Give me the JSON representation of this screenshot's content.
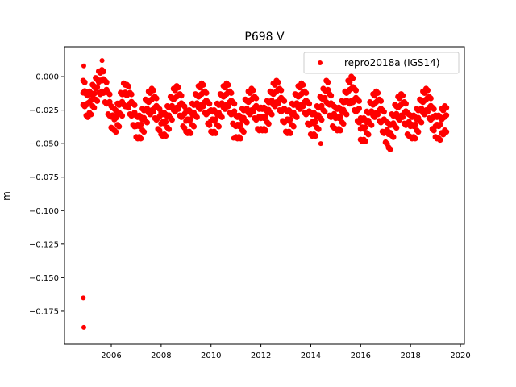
{
  "chart_data": {
    "type": "scatter",
    "title": "P698 V",
    "xlabel": "",
    "ylabel": "m",
    "xlim": [
      2004.125,
      2020.16
    ],
    "ylim": [
      -0.1997,
      0.0223
    ],
    "grid": false,
    "legend_placement": "top-right",
    "xticks": [
      2006,
      2008,
      2010,
      2012,
      2014,
      2016,
      2018,
      2020
    ],
    "xtick_labels": [
      "2006",
      "2008",
      "2010",
      "2012",
      "2014",
      "2016",
      "2018",
      "2020"
    ],
    "yticks": [
      0,
      -0.025,
      -0.05,
      -0.075,
      -0.1,
      -0.125,
      -0.15,
      -0.175
    ],
    "ytick_labels": [
      "0.000",
      "−0.025",
      "−0.050",
      "−0.075",
      "−0.100",
      "−0.125",
      "−0.150",
      "−0.175"
    ],
    "series": [
      {
        "name": "repro2018a (IGS14)",
        "color": "#ff0000",
        "marker": "circle",
        "points": [
          [
            2004.9,
            0.008
          ],
          [
            2004.88,
            -0.165
          ],
          [
            2004.9,
            -0.187
          ],
          [
            2005.63,
            0.012
          ],
          [
            2014.4,
            -0.05
          ],
          [
            2010.9,
            -0.046
          ]
        ],
        "points_by_date": [
          [
            2004.875,
            -0.003,
            -0.012,
            -0.021
          ],
          [
            2005.0,
            -0.013,
            -0.021,
            -0.029
          ],
          [
            2005.125,
            -0.011,
            -0.019,
            -0.027
          ],
          [
            2005.25,
            -0.006,
            -0.014,
            -0.022
          ],
          [
            2005.375,
            -0.001,
            -0.009,
            -0.017
          ],
          [
            2005.5,
            0.004,
            -0.004,
            -0.012
          ],
          [
            2005.625,
            0.005,
            -0.003,
            -0.011
          ],
          [
            2005.75,
            -0.003,
            -0.011,
            -0.019
          ],
          [
            2005.875,
            -0.012,
            -0.02,
            -0.028
          ],
          [
            2006.0,
            -0.022,
            -0.03,
            -0.038
          ],
          [
            2006.125,
            -0.024,
            -0.032,
            -0.04
          ],
          [
            2006.25,
            -0.02,
            -0.028,
            -0.036
          ],
          [
            2006.375,
            -0.012,
            -0.02,
            -0.028
          ],
          [
            2006.5,
            -0.005,
            -0.013,
            -0.021
          ],
          [
            2006.625,
            -0.006,
            -0.014,
            -0.022
          ],
          [
            2006.75,
            -0.012,
            -0.02,
            -0.028
          ],
          [
            2006.875,
            -0.02,
            -0.028,
            -0.036
          ],
          [
            2007.0,
            -0.029,
            -0.037,
            -0.045
          ],
          [
            2007.125,
            -0.029,
            -0.037,
            -0.045
          ],
          [
            2007.25,
            -0.024,
            -0.032,
            -0.04
          ],
          [
            2007.375,
            -0.017,
            -0.025,
            -0.033
          ],
          [
            2007.5,
            -0.011,
            -0.019,
            -0.027
          ],
          [
            2007.625,
            -0.009,
            -0.017,
            -0.025
          ],
          [
            2007.75,
            -0.015,
            -0.023,
            -0.031
          ],
          [
            2007.875,
            -0.023,
            -0.031,
            -0.039
          ],
          [
            2008.0,
            -0.027,
            -0.035,
            -0.043
          ],
          [
            2008.125,
            -0.027,
            -0.035,
            -0.043
          ],
          [
            2008.25,
            -0.022,
            -0.03,
            -0.038
          ],
          [
            2008.375,
            -0.015,
            -0.023,
            -0.031
          ],
          [
            2008.5,
            -0.009,
            -0.017,
            -0.025
          ],
          [
            2008.625,
            -0.007,
            -0.015,
            -0.023
          ],
          [
            2008.75,
            -0.013,
            -0.021,
            -0.029
          ],
          [
            2008.875,
            -0.021,
            -0.029,
            -0.037
          ],
          [
            2009.0,
            -0.025,
            -0.033,
            -0.041
          ],
          [
            2009.125,
            -0.025,
            -0.033,
            -0.041
          ],
          [
            2009.25,
            -0.02,
            -0.028,
            -0.036
          ],
          [
            2009.375,
            -0.013,
            -0.021,
            -0.029
          ],
          [
            2009.5,
            -0.007,
            -0.015,
            -0.023
          ],
          [
            2009.625,
            -0.005,
            -0.013,
            -0.021
          ],
          [
            2009.75,
            -0.011,
            -0.019,
            -0.027
          ],
          [
            2009.875,
            -0.019,
            -0.027,
            -0.035
          ],
          [
            2010.0,
            -0.025,
            -0.033,
            -0.041
          ],
          [
            2010.125,
            -0.025,
            -0.033,
            -0.041
          ],
          [
            2010.25,
            -0.02,
            -0.028,
            -0.036
          ],
          [
            2010.375,
            -0.013,
            -0.021,
            -0.029
          ],
          [
            2010.5,
            -0.007,
            -0.015,
            -0.023
          ],
          [
            2010.625,
            -0.005,
            -0.013,
            -0.021
          ],
          [
            2010.75,
            -0.011,
            -0.019,
            -0.027
          ],
          [
            2010.875,
            -0.019,
            -0.027,
            -0.035
          ],
          [
            2011.0,
            -0.029,
            -0.037,
            -0.045
          ],
          [
            2011.125,
            -0.029,
            -0.037,
            -0.045
          ],
          [
            2011.25,
            -0.024,
            -0.032,
            -0.04
          ],
          [
            2011.375,
            -0.017,
            -0.025,
            -0.033
          ],
          [
            2011.5,
            -0.011,
            -0.019,
            -0.027
          ],
          [
            2011.625,
            -0.009,
            -0.017,
            -0.025
          ],
          [
            2011.75,
            -0.015,
            -0.023,
            -0.031
          ],
          [
            2011.875,
            -0.023,
            -0.031,
            -0.039
          ],
          [
            2012.0,
            -0.023,
            -0.031,
            -0.039
          ],
          [
            2012.125,
            -0.023,
            -0.031,
            -0.039
          ],
          [
            2012.25,
            -0.018,
            -0.026,
            -0.034
          ],
          [
            2012.375,
            -0.011,
            -0.019,
            -0.027
          ],
          [
            2012.5,
            -0.005,
            -0.013,
            -0.021
          ],
          [
            2012.625,
            -0.003,
            -0.011,
            -0.019
          ],
          [
            2012.75,
            -0.009,
            -0.017,
            -0.025
          ],
          [
            2012.875,
            -0.017,
            -0.025,
            -0.033
          ],
          [
            2013.0,
            -0.025,
            -0.033,
            -0.041
          ],
          [
            2013.125,
            -0.025,
            -0.033,
            -0.041
          ],
          [
            2013.25,
            -0.02,
            -0.028,
            -0.036
          ],
          [
            2013.375,
            -0.013,
            -0.021,
            -0.029
          ],
          [
            2013.5,
            -0.007,
            -0.015,
            -0.023
          ],
          [
            2013.625,
            -0.005,
            -0.013,
            -0.021
          ],
          [
            2013.75,
            -0.011,
            -0.019,
            -0.027
          ],
          [
            2013.875,
            -0.019,
            -0.027,
            -0.035
          ],
          [
            2014.0,
            -0.027,
            -0.035,
            -0.043
          ],
          [
            2014.125,
            -0.027,
            -0.035,
            -0.043
          ],
          [
            2014.25,
            -0.022,
            -0.03,
            -0.038
          ],
          [
            2014.375,
            -0.015,
            -0.023,
            -0.031
          ],
          [
            2014.5,
            -0.009,
            -0.017,
            -0.025
          ],
          [
            2014.625,
            -0.003,
            -0.011,
            -0.019
          ],
          [
            2014.75,
            -0.013,
            -0.021,
            -0.029
          ],
          [
            2014.875,
            -0.021,
            -0.029,
            -0.037
          ],
          [
            2015.0,
            -0.023,
            -0.031,
            -0.039
          ],
          [
            2015.125,
            -0.023,
            -0.031,
            -0.039
          ],
          [
            2015.25,
            -0.018,
            -0.026,
            -0.034
          ],
          [
            2015.375,
            -0.011,
            -0.019,
            -0.027
          ],
          [
            2015.5,
            -0.003,
            -0.011,
            -0.019
          ],
          [
            2015.625,
            0.0,
            -0.009,
            -0.018
          ],
          [
            2015.75,
            -0.009,
            -0.017,
            -0.025
          ],
          [
            2015.875,
            -0.017,
            -0.025,
            -0.033
          ],
          [
            2016.0,
            -0.031,
            -0.039,
            -0.047
          ],
          [
            2016.125,
            -0.031,
            -0.039,
            -0.047
          ],
          [
            2016.25,
            -0.026,
            -0.034,
            -0.042
          ],
          [
            2016.375,
            -0.019,
            -0.027,
            -0.035
          ],
          [
            2016.5,
            -0.013,
            -0.021,
            -0.029
          ],
          [
            2016.625,
            -0.011,
            -0.019,
            -0.027
          ],
          [
            2016.75,
            -0.017,
            -0.025,
            -0.033
          ],
          [
            2016.875,
            -0.025,
            -0.033,
            -0.041
          ],
          [
            2017.0,
            -0.033,
            -0.041,
            -0.049
          ],
          [
            2017.125,
            -0.035,
            -0.043,
            -0.053
          ],
          [
            2017.25,
            -0.028,
            -0.036,
            -0.044
          ],
          [
            2017.375,
            -0.021,
            -0.029,
            -0.037
          ],
          [
            2017.5,
            -0.015,
            -0.023,
            -0.031
          ],
          [
            2017.625,
            -0.013,
            -0.021,
            -0.029
          ],
          [
            2017.75,
            -0.019,
            -0.027,
            -0.035
          ],
          [
            2017.875,
            -0.027,
            -0.035,
            -0.043
          ],
          [
            2018.0,
            -0.029,
            -0.037,
            -0.045
          ],
          [
            2018.125,
            -0.029,
            -0.037,
            -0.045
          ],
          [
            2018.25,
            -0.024,
            -0.032,
            -0.04
          ],
          [
            2018.375,
            -0.017,
            -0.025,
            -0.033
          ],
          [
            2018.5,
            -0.011,
            -0.019,
            -0.027
          ],
          [
            2018.625,
            -0.009,
            -0.017,
            -0.025
          ],
          [
            2018.75,
            -0.015,
            -0.023,
            -0.031
          ],
          [
            2018.875,
            -0.023,
            -0.031,
            -0.039
          ],
          [
            2019.0,
            -0.029,
            -0.037,
            -0.045
          ],
          [
            2019.125,
            -0.029,
            -0.037,
            -0.046
          ],
          [
            2019.25,
            -0.024,
            -0.032,
            -0.042
          ],
          [
            2019.375,
            -0.022,
            -0.03,
            -0.04
          ]
        ]
      }
    ]
  }
}
